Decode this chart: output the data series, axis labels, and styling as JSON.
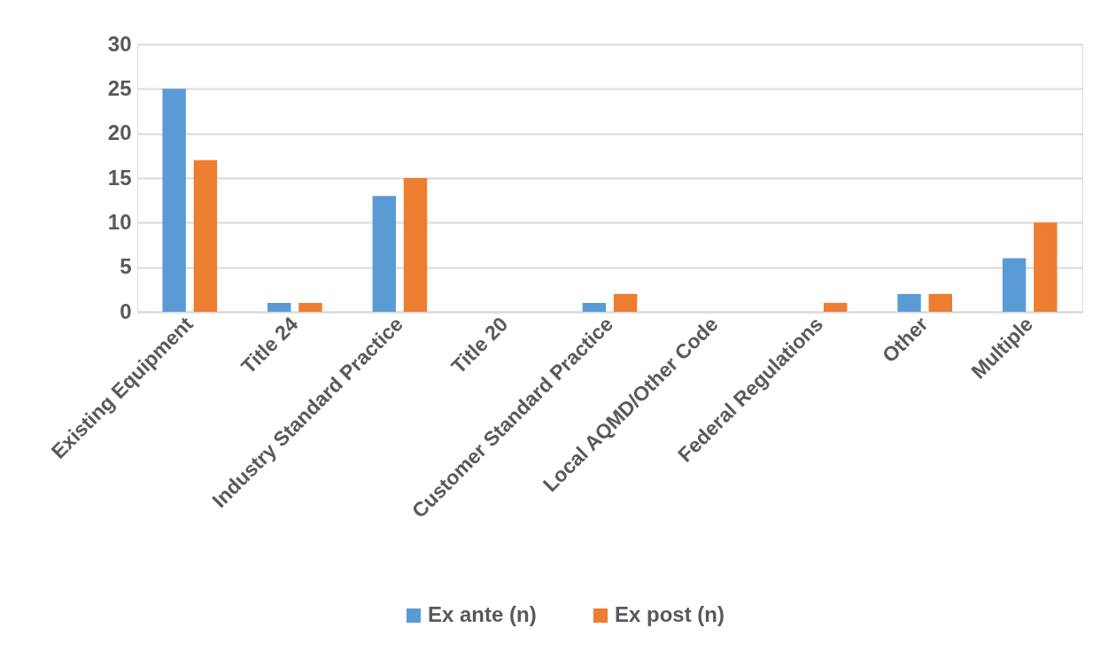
{
  "chart_data": {
    "type": "bar",
    "categories": [
      "Existing Equipment",
      "Title 24",
      "Industry Standard Practice",
      "Title 20",
      "Customer Standard Practice",
      "Local AQMD/Other Code",
      "Federal Regulations",
      "Other",
      "Multiple"
    ],
    "series": [
      {
        "name": "Ex ante (n)",
        "color": "#5b9bd5",
        "values": [
          25,
          1,
          13,
          0,
          1,
          0,
          0,
          2,
          6
        ]
      },
      {
        "name": "Ex post (n)",
        "color": "#ed7d31",
        "values": [
          17,
          1,
          15,
          0,
          2,
          0,
          1,
          2,
          10
        ]
      }
    ],
    "ylim": [
      0,
      30
    ],
    "yticks": [
      0,
      5,
      10,
      15,
      20,
      25,
      30
    ],
    "grid": "y",
    "legend": "bottom"
  }
}
